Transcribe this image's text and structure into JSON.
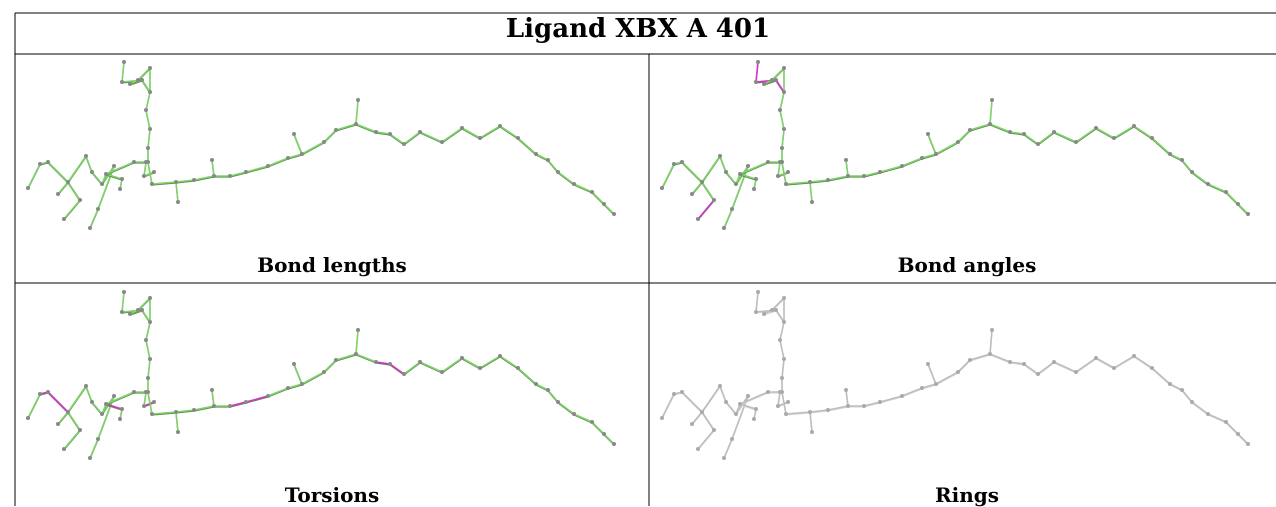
{
  "title": "Ligand XBX A 401",
  "panels": [
    {
      "caption": "Bond lengths",
      "highlight": []
    },
    {
      "caption": "Bond angles",
      "highlight": [
        [
          24,
          25
        ],
        [
          25,
          26
        ],
        [
          26,
          27
        ],
        [
          4,
          5
        ],
        [
          5,
          6
        ]
      ]
    },
    {
      "caption": "Torsions",
      "highlight": [
        [
          1,
          2
        ],
        [
          2,
          3
        ],
        [
          12,
          13
        ],
        [
          13,
          14
        ],
        [
          18,
          19
        ],
        [
          36,
          37
        ],
        [
          37,
          38
        ],
        [
          38,
          39
        ],
        [
          47,
          48
        ],
        [
          48,
          49
        ]
      ]
    },
    {
      "caption": "Rings",
      "highlight": []
    }
  ],
  "panel_modes": [
    "colored",
    "colored",
    "colored",
    "grey"
  ],
  "colors": {
    "ok": "#7fd36a",
    "flag": "#d633cc",
    "atom": "#888888",
    "grey": "#bdbdbd",
    "border": "#000000"
  }
}
